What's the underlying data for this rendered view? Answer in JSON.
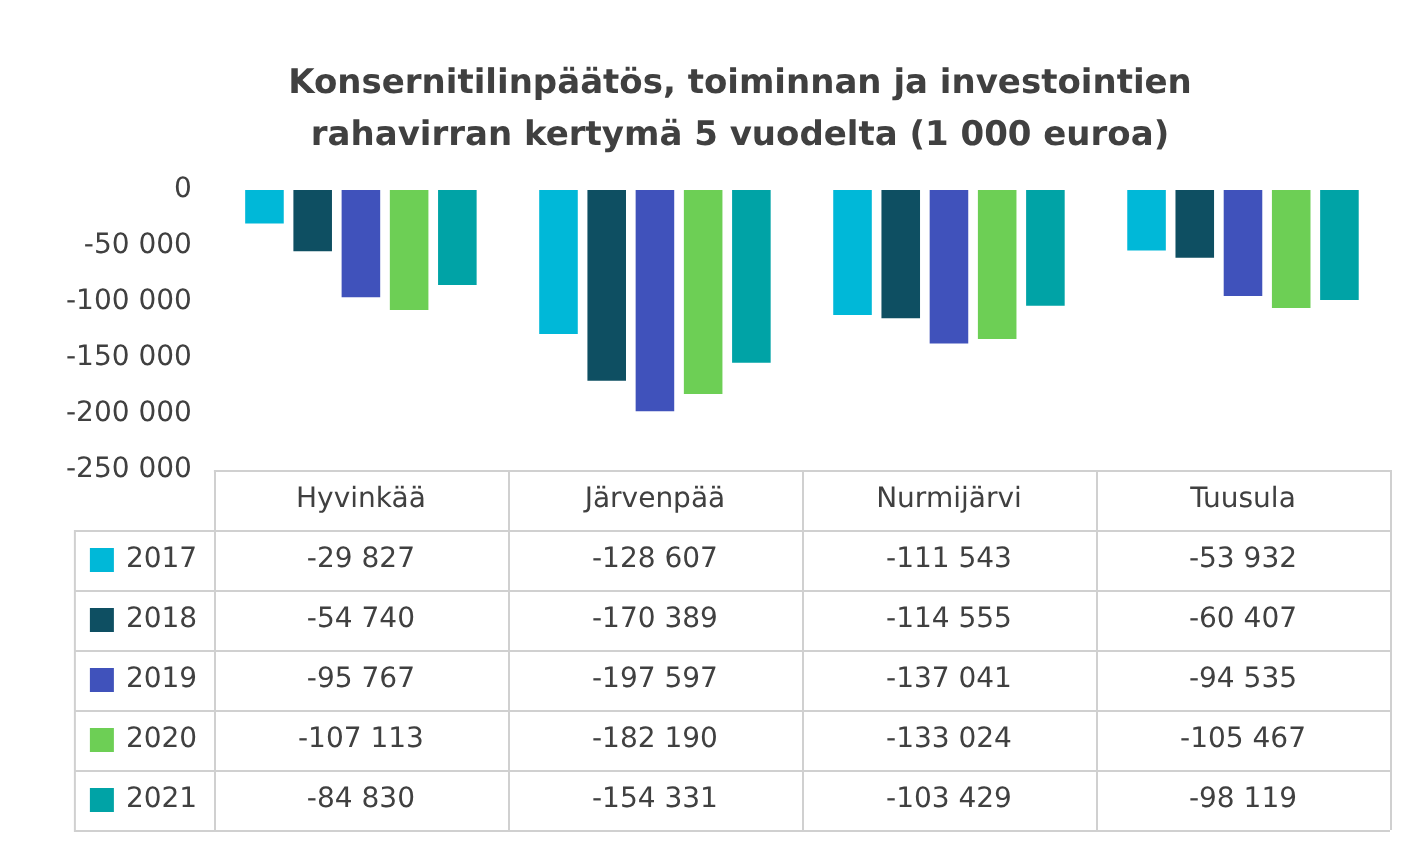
{
  "chart_data": {
    "type": "bar",
    "title": "Konsernitilinpäätös, toiminnan ja investointien rahavirran kertymä 5 vuodelta (1 000 euroa)",
    "categories": [
      "Hyvinkää",
      "Järvenpää",
      "Nurmijärvi",
      "Tuusula"
    ],
    "series": [
      {
        "name": "2017",
        "color": "#00b8d8",
        "values": [
          -29827,
          -128607,
          -111543,
          -53932
        ]
      },
      {
        "name": "2018",
        "color": "#0e4f62",
        "values": [
          -54740,
          -170389,
          -114555,
          -60407
        ]
      },
      {
        "name": "2019",
        "color": "#4052bb",
        "values": [
          -95767,
          -197597,
          -137041,
          -94535
        ]
      },
      {
        "name": "2020",
        "color": "#6dcf55",
        "values": [
          -107113,
          -182190,
          -133024,
          -105467
        ]
      },
      {
        "name": "2021",
        "color": "#00a3a6",
        "values": [
          -84830,
          -154331,
          -103429,
          -98119
        ]
      }
    ],
    "ylim": [
      -250000,
      0
    ],
    "yticks": [
      {
        "value": 0,
        "label": "0"
      },
      {
        "value": -50000,
        "label": "-50 000"
      },
      {
        "value": -100000,
        "label": "-100 000"
      },
      {
        "value": -150000,
        "label": "-150 000"
      },
      {
        "value": -200000,
        "label": "-200 000"
      },
      {
        "value": -250000,
        "label": "-250 000"
      }
    ],
    "legend": "bottom",
    "data_labels": true
  }
}
